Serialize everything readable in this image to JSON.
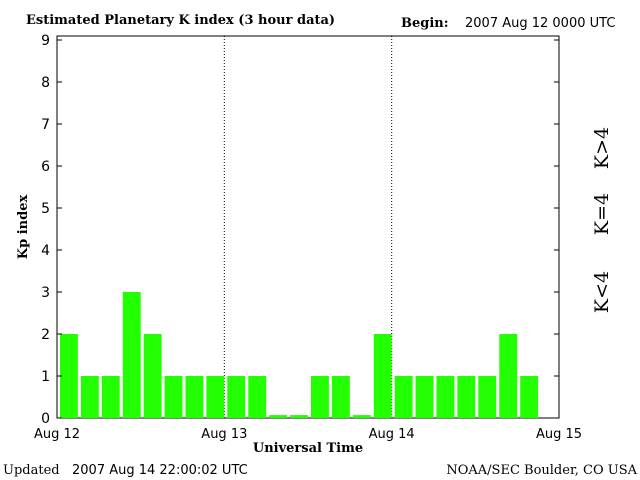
{
  "header": {
    "title": "Estimated Planetary K index (3 hour data)",
    "begin_label": "Begin:",
    "begin_value": "2007 Aug 12 0000 UTC"
  },
  "footer": {
    "updated_label": "Updated",
    "updated_value": "2007 Aug 14 22:00:02 UTC",
    "source": "NOAA/SEC Boulder, CO USA"
  },
  "legend": {
    "items": [
      {
        "label": "K<4",
        "color": "#22ff00"
      },
      {
        "label": "K=4",
        "color": "#ffcc00"
      },
      {
        "label": "K>4",
        "color": "#ff2200"
      }
    ]
  },
  "chart_data": {
    "type": "bar",
    "xlabel": "Universal Time",
    "ylabel": "Kp index",
    "ylim": [
      0,
      9
    ],
    "yticks": [
      "0",
      "1",
      "2",
      "3",
      "4",
      "5",
      "6",
      "7",
      "8",
      "9"
    ],
    "xticks": [
      "Aug 12",
      "Aug 13",
      "Aug 14",
      "Aug 15"
    ],
    "bar_color": "#22ff00",
    "grid": "dotted vertical lines at day boundaries",
    "values": [
      2,
      1,
      1,
      3,
      2,
      1,
      1,
      1,
      1,
      1,
      0.07,
      0.07,
      1,
      1,
      0.07,
      2,
      1,
      1,
      1,
      1,
      1,
      2,
      1
    ]
  }
}
